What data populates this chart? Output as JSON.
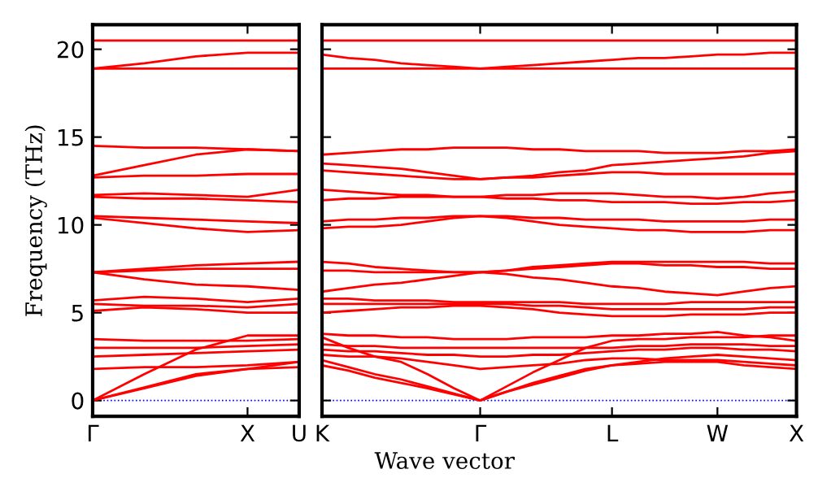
{
  "chart_data": [
    {
      "type": "line",
      "ylabel": "Frequency (THz)",
      "categories": [
        "Γ",
        null,
        null,
        "X",
        "U"
      ],
      "ylim": [
        -0.9,
        21.4
      ],
      "yticks": [
        0,
        5,
        10,
        15,
        20
      ],
      "ref_lines": [
        {
          "axis": "y",
          "value": 0,
          "color": "#0000ff",
          "line_style": "dotted"
        }
      ],
      "marker": "none",
      "line_style": "solid",
      "legend": false,
      "grid": false,
      "series": [
        {
          "color": "#ff0000",
          "values": [
            0,
            0.7,
            1.4,
            1.8,
            1.9
          ]
        },
        {
          "color": "#ff0000",
          "values": [
            0,
            0.75,
            1.5,
            1.8,
            2.2
          ]
        },
        {
          "color": "#ff0000",
          "values": [
            0,
            1.5,
            2.9,
            3.7,
            3.7
          ]
        },
        {
          "color": "#ff0000",
          "values": [
            1.8,
            1.9,
            1.9,
            2.0,
            2.2
          ]
        },
        {
          "color": "#ff0000",
          "values": [
            2.5,
            2.6,
            2.7,
            2.8,
            2.9
          ]
        },
        {
          "color": "#ff0000",
          "values": [
            3.0,
            3.0,
            3.0,
            3.1,
            3.2
          ]
        },
        {
          "color": "#ff0000",
          "values": [
            3.5,
            3.4,
            3.4,
            3.4,
            3.5
          ]
        },
        {
          "color": "#ff0000",
          "values": [
            5.1,
            5.3,
            5.2,
            5.0,
            5.0
          ]
        },
        {
          "color": "#ff0000",
          "values": [
            5.5,
            5.4,
            5.4,
            5.3,
            5.5
          ]
        },
        {
          "color": "#ff0000",
          "values": [
            5.7,
            5.9,
            5.8,
            5.6,
            5.8
          ]
        },
        {
          "color": "#ff0000",
          "values": [
            7.3,
            6.9,
            6.6,
            6.5,
            6.3
          ]
        },
        {
          "color": "#ff0000",
          "values": [
            7.3,
            7.4,
            7.5,
            7.5,
            7.5
          ]
        },
        {
          "color": "#ff0000",
          "values": [
            7.3,
            7.5,
            7.7,
            7.8,
            7.9
          ]
        },
        {
          "color": "#ff0000",
          "values": [
            10.4,
            10.1,
            9.8,
            9.6,
            9.7
          ]
        },
        {
          "color": "#ff0000",
          "values": [
            10.5,
            10.4,
            10.3,
            10.2,
            10.1
          ]
        },
        {
          "color": "#ff0000",
          "values": [
            11.6,
            11.5,
            11.5,
            11.4,
            11.3
          ]
        },
        {
          "color": "#ff0000",
          "values": [
            11.7,
            11.8,
            11.7,
            11.6,
            12.0
          ]
        },
        {
          "color": "#ff0000",
          "values": [
            12.7,
            12.8,
            12.8,
            12.9,
            12.9
          ]
        },
        {
          "color": "#ff0000",
          "values": [
            12.8,
            13.4,
            14.0,
            14.3,
            14.2
          ]
        },
        {
          "color": "#ff0000",
          "values": [
            14.5,
            14.4,
            14.4,
            14.3,
            14.2
          ]
        },
        {
          "color": "#ff0000",
          "values": [
            18.9,
            18.9,
            18.9,
            18.9,
            18.9
          ]
        },
        {
          "color": "#ff0000",
          "values": [
            18.9,
            19.2,
            19.6,
            19.8,
            19.8
          ]
        },
        {
          "color": "#ff0000",
          "values": [
            20.5,
            20.5,
            20.5,
            20.5,
            20.5
          ]
        }
      ]
    },
    {
      "type": "line",
      "xlabel": "Wave vector",
      "categories": [
        "K",
        null,
        null,
        null,
        null,
        null,
        "Γ",
        null,
        null,
        null,
        null,
        "L",
        null,
        null,
        null,
        "W",
        null,
        null,
        "X"
      ],
      "ylim": [
        -0.9,
        21.4
      ],
      "yticks": [
        0,
        5,
        10,
        15,
        20
      ],
      "tick_labels": "x",
      "ref_lines": [
        {
          "axis": "y",
          "value": 0,
          "color": "#0000ff",
          "line_style": "dotted"
        }
      ],
      "marker": "none",
      "line_style": "solid",
      "legend": false,
      "grid": false,
      "series": [
        {
          "color": "#ff0000",
          "values": [
            2.0,
            1.7,
            1.3,
            1.0,
            0.7,
            0.35,
            0,
            0.5,
            0.9,
            1.3,
            1.7,
            2.0,
            2.1,
            2.2,
            2.2,
            2.2,
            2.0,
            1.9,
            1.8
          ]
        },
        {
          "color": "#ff0000",
          "values": [
            2.3,
            1.9,
            1.5,
            1.2,
            0.8,
            0.4,
            0,
            0.5,
            1.0,
            1.4,
            1.8,
            2.0,
            2.2,
            2.4,
            2.5,
            2.6,
            2.5,
            2.4,
            2.3
          ]
        },
        {
          "color": "#ff0000",
          "values": [
            3.6,
            3.0,
            2.5,
            2.2,
            1.5,
            0.7,
            0,
            0.8,
            1.6,
            2.3,
            3.0,
            3.4,
            3.5,
            3.5,
            3.6,
            3.6,
            3.6,
            3.7,
            3.7
          ]
        },
        {
          "color": "#ff0000",
          "values": [
            2.6,
            2.5,
            2.5,
            2.4,
            2.2,
            2.0,
            1.8,
            1.9,
            2.0,
            2.1,
            2.3,
            2.4,
            2.4,
            2.3,
            2.3,
            2.3,
            2.2,
            2.1,
            2.0
          ]
        },
        {
          "color": "#ff0000",
          "values": [
            2.9,
            2.8,
            2.8,
            2.7,
            2.6,
            2.6,
            2.5,
            2.5,
            2.6,
            2.6,
            2.7,
            2.8,
            2.9,
            2.9,
            3.0,
            3.0,
            2.9,
            2.9,
            2.8
          ]
        },
        {
          "color": "#ff0000",
          "values": [
            3.2,
            3.1,
            3.1,
            3.0,
            3.0,
            3.0,
            3.0,
            3.0,
            3.0,
            3.0,
            3.0,
            3.0,
            3.1,
            3.1,
            3.2,
            3.2,
            3.2,
            3.1,
            3.1
          ]
        },
        {
          "color": "#ff0000",
          "values": [
            3.8,
            3.7,
            3.7,
            3.6,
            3.6,
            3.5,
            3.5,
            3.5,
            3.6,
            3.6,
            3.6,
            3.7,
            3.7,
            3.8,
            3.8,
            3.9,
            3.7,
            3.6,
            3.4
          ]
        },
        {
          "color": "#ff0000",
          "values": [
            5.0,
            5.1,
            5.2,
            5.3,
            5.3,
            5.4,
            5.4,
            5.3,
            5.2,
            5.0,
            4.9,
            4.8,
            4.8,
            4.8,
            4.9,
            4.9,
            4.9,
            5.0,
            5.0
          ]
        },
        {
          "color": "#ff0000",
          "values": [
            5.5,
            5.5,
            5.5,
            5.5,
            5.5,
            5.5,
            5.5,
            5.5,
            5.4,
            5.4,
            5.3,
            5.2,
            5.2,
            5.2,
            5.2,
            5.2,
            5.2,
            5.3,
            5.3
          ]
        },
        {
          "color": "#ff0000",
          "values": [
            5.8,
            5.8,
            5.7,
            5.7,
            5.7,
            5.6,
            5.6,
            5.6,
            5.6,
            5.6,
            5.5,
            5.5,
            5.5,
            5.5,
            5.6,
            5.6,
            5.6,
            5.6,
            5.6
          ]
        },
        {
          "color": "#ff0000",
          "values": [
            6.2,
            6.4,
            6.6,
            6.7,
            6.9,
            7.1,
            7.3,
            7.2,
            7.0,
            6.9,
            6.7,
            6.5,
            6.4,
            6.2,
            6.1,
            6.0,
            6.2,
            6.4,
            6.5
          ]
        },
        {
          "color": "#ff0000",
          "values": [
            7.4,
            7.4,
            7.3,
            7.3,
            7.3,
            7.3,
            7.3,
            7.4,
            7.5,
            7.6,
            7.7,
            7.8,
            7.8,
            7.7,
            7.7,
            7.6,
            7.6,
            7.5,
            7.5
          ]
        },
        {
          "color": "#ff0000",
          "values": [
            7.9,
            7.8,
            7.6,
            7.5,
            7.4,
            7.3,
            7.3,
            7.4,
            7.6,
            7.7,
            7.8,
            7.9,
            7.9,
            7.9,
            7.9,
            7.9,
            7.9,
            7.8,
            7.8
          ]
        },
        {
          "color": "#ff0000",
          "values": [
            9.8,
            9.9,
            9.9,
            10.0,
            10.2,
            10.4,
            10.5,
            10.4,
            10.2,
            10.0,
            9.9,
            9.8,
            9.7,
            9.7,
            9.6,
            9.6,
            9.6,
            9.7,
            9.7
          ]
        },
        {
          "color": "#ff0000",
          "values": [
            10.2,
            10.3,
            10.3,
            10.4,
            10.4,
            10.5,
            10.5,
            10.5,
            10.4,
            10.4,
            10.3,
            10.3,
            10.3,
            10.2,
            10.2,
            10.2,
            10.2,
            10.3,
            10.3
          ]
        },
        {
          "color": "#ff0000",
          "values": [
            11.4,
            11.5,
            11.5,
            11.6,
            11.6,
            11.6,
            11.6,
            11.5,
            11.5,
            11.4,
            11.4,
            11.3,
            11.3,
            11.3,
            11.2,
            11.2,
            11.3,
            11.3,
            11.4
          ]
        },
        {
          "color": "#ff0000",
          "values": [
            12.0,
            11.9,
            11.8,
            11.7,
            11.7,
            11.6,
            11.6,
            11.7,
            11.7,
            11.8,
            11.8,
            11.8,
            11.7,
            11.6,
            11.6,
            11.5,
            11.6,
            11.8,
            11.9
          ]
        },
        {
          "color": "#ff0000",
          "values": [
            13.1,
            13.0,
            12.9,
            12.8,
            12.7,
            12.6,
            12.6,
            12.7,
            12.7,
            12.8,
            12.9,
            13.0,
            13.0,
            12.9,
            12.9,
            12.9,
            12.9,
            12.9,
            12.9
          ]
        },
        {
          "color": "#ff0000",
          "values": [
            13.5,
            13.4,
            13.3,
            13.2,
            13.0,
            12.8,
            12.6,
            12.7,
            12.8,
            13.0,
            13.1,
            13.4,
            13.5,
            13.6,
            13.7,
            13.8,
            13.9,
            14.1,
            14.2
          ]
        },
        {
          "color": "#ff0000",
          "values": [
            14.0,
            14.1,
            14.2,
            14.3,
            14.3,
            14.4,
            14.4,
            14.4,
            14.3,
            14.3,
            14.2,
            14.2,
            14.2,
            14.1,
            14.1,
            14.1,
            14.2,
            14.2,
            14.3
          ]
        },
        {
          "color": "#ff0000",
          "values": [
            18.9,
            18.9,
            18.9,
            18.9,
            18.9,
            18.9,
            18.9,
            18.9,
            18.9,
            18.9,
            18.9,
            18.9,
            18.9,
            18.9,
            18.9,
            18.9,
            18.9,
            18.9,
            18.9
          ]
        },
        {
          "color": "#ff0000",
          "values": [
            19.7,
            19.5,
            19.4,
            19.2,
            19.1,
            19.0,
            18.9,
            19.0,
            19.1,
            19.2,
            19.3,
            19.4,
            19.5,
            19.5,
            19.6,
            19.7,
            19.7,
            19.8,
            19.8
          ]
        },
        {
          "color": "#ff0000",
          "values": [
            20.5,
            20.5,
            20.5,
            20.5,
            20.5,
            20.5,
            20.5,
            20.5,
            20.5,
            20.5,
            20.5,
            20.5,
            20.5,
            20.5,
            20.5,
            20.5,
            20.5,
            20.5,
            20.5
          ]
        }
      ]
    }
  ]
}
